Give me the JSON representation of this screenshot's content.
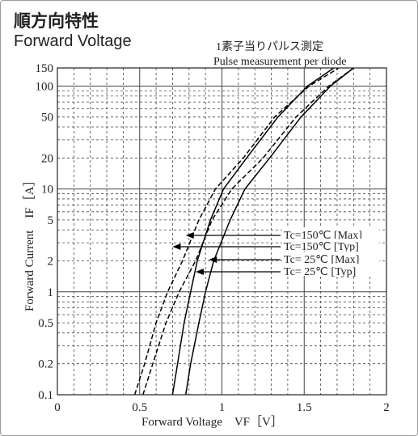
{
  "header": {
    "title_jp": "順方向特性",
    "title_en": "Forward Voltage"
  },
  "chart_data": {
    "type": "line",
    "xlabel": "Forward Voltage　VF［V］",
    "ylabel": "Forward Current　IF［A］",
    "xlim": [
      0,
      2
    ],
    "ylim": [
      0.1,
      150
    ],
    "yscale": "log",
    "grid": true,
    "x_ticks": [
      "0",
      "0.5",
      "1",
      "1.5",
      "2"
    ],
    "y_ticks": [
      "0.1",
      "0.2",
      "0.5",
      "1",
      "2",
      "5",
      "10",
      "20",
      "50",
      "100",
      "150"
    ],
    "x_tick_values": [
      0,
      0.5,
      1,
      1.5,
      2
    ],
    "y_tick_values": [
      0.1,
      0.2,
      0.5,
      1,
      2,
      5,
      10,
      20,
      50,
      100,
      150
    ],
    "annotations": [
      "1素子当りパルス測定",
      "Pulse measurement per diode"
    ],
    "series": [
      {
        "name": "Tc=150℃ [Max]",
        "style": "dashed",
        "x": [
          0.52,
          0.58,
          0.66,
          0.74,
          0.84,
          0.94,
          1.06,
          1.25,
          1.45,
          1.65,
          1.8
        ],
        "y": [
          0.1,
          0.2,
          0.5,
          1,
          2,
          5,
          10,
          20,
          50,
          100,
          150
        ]
      },
      {
        "name": "Tc=150℃ [Typ]",
        "style": "dashed",
        "x": [
          0.47,
          0.53,
          0.6,
          0.67,
          0.76,
          0.86,
          0.96,
          1.13,
          1.32,
          1.53,
          1.71
        ],
        "y": [
          0.1,
          0.2,
          0.5,
          1,
          2,
          5,
          10,
          20,
          50,
          100,
          150
        ]
      },
      {
        "name": "Tc= 25℃ [Max]",
        "style": "solid",
        "x": [
          0.78,
          0.81,
          0.86,
          0.9,
          0.95,
          1.05,
          1.14,
          1.29,
          1.48,
          1.66,
          1.8
        ],
        "y": [
          0.1,
          0.2,
          0.5,
          1,
          2,
          5,
          10,
          20,
          50,
          100,
          150
        ]
      },
      {
        "name": "Tc= 25℃ [Typ]",
        "style": "solid",
        "x": [
          0.7,
          0.73,
          0.77,
          0.81,
          0.85,
          0.93,
          1.01,
          1.15,
          1.34,
          1.52,
          1.68
        ],
        "y": [
          0.1,
          0.2,
          0.5,
          1,
          2,
          5,
          10,
          20,
          50,
          100,
          150
        ]
      }
    ],
    "legend_placement": "right, middle"
  }
}
